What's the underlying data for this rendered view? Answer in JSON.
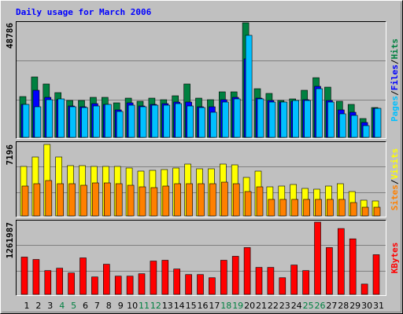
{
  "title": "Daily usage for March 2006",
  "legend_separator": "/",
  "chart_data": [
    {
      "type": "bar",
      "ylim": [
        0,
        48786
      ],
      "yticks": [
        48786
      ],
      "series": [
        {
          "name": "Hits",
          "color": "#008040",
          "values": [
            17378,
            25733,
            22726,
            19049,
            15707,
            15707,
            17044,
            17044,
            14705,
            16710,
            15373,
            16710,
            16042,
            17713,
            22726,
            16710,
            16042,
            19384,
            19384,
            48786,
            20720,
            18715,
            15707,
            16376,
            20052,
            25399,
            21389,
            15373,
            14036,
            8021,
            12700
          ]
        },
        {
          "name": "Files",
          "color": "#0000ff",
          "values": [
            14036,
            20052,
            17044,
            16042,
            13368,
            13034,
            14371,
            14036,
            11697,
            14705,
            13368,
            14036,
            14371,
            15039,
            15039,
            13034,
            13034,
            16042,
            17044,
            33420,
            16710,
            15707,
            15039,
            15373,
            16042,
            21723,
            15707,
            11697,
            10694,
            6350,
            12365
          ]
        },
        {
          "name": "Pages",
          "color": "#00c0ff",
          "values": [
            14036,
            13034,
            16042,
            16376,
            13034,
            12700,
            13368,
            14036,
            11029,
            13702,
            13034,
            13702,
            13702,
            14371,
            13368,
            12700,
            10694,
            15039,
            16376,
            43446,
            16376,
            15039,
            15039,
            15707,
            15707,
            20720,
            15039,
            10026,
            9358,
            5013,
            12365
          ]
        }
      ]
    },
    {
      "type": "bar",
      "ylim": [
        0,
        7196
      ],
      "yticks": [
        7196
      ],
      "series": [
        {
          "name": "Visits",
          "color": "#ffff00",
          "values": [
            4982,
            5931,
            7196,
            5931,
            5061,
            5061,
            4982,
            4982,
            4982,
            4824,
            4508,
            4587,
            4666,
            4824,
            5219,
            4745,
            4745,
            5219,
            5140,
            3875,
            4508,
            2926,
            3005,
            3163,
            2768,
            2689,
            3005,
            3242,
            2451,
            1582,
            1503
          ]
        },
        {
          "name": "Sites",
          "color": "#ff8000",
          "values": [
            3005,
            3242,
            3559,
            3242,
            3242,
            3084,
            3321,
            3321,
            3242,
            3084,
            2926,
            2847,
            3005,
            3242,
            3242,
            3242,
            3242,
            3400,
            3242,
            2451,
            2926,
            1661,
            1661,
            1661,
            1661,
            1661,
            1661,
            1661,
            1344,
            870,
            870
          ]
        }
      ]
    },
    {
      "type": "bar",
      "ylim": [
        0,
        1261987
      ],
      "yticks": [
        1261987
      ],
      "categories": [
        "1",
        "2",
        "3",
        "4",
        "5",
        "6",
        "7",
        "8",
        "9",
        "10",
        "11",
        "12",
        "13",
        "14",
        "15",
        "16",
        "17",
        "18",
        "19",
        "20",
        "21",
        "22",
        "23",
        "24",
        "25",
        "26",
        "27",
        "28",
        "29",
        "30",
        "31"
      ],
      "category_colors": [
        "#000000",
        "#000000",
        "#000000",
        "#008040",
        "#008040",
        "#000000",
        "#000000",
        "#000000",
        "#000000",
        "#000000",
        "#008040",
        "#008040",
        "#000000",
        "#000000",
        "#000000",
        "#000000",
        "#000000",
        "#008040",
        "#008040",
        "#000000",
        "#000000",
        "#000000",
        "#000000",
        "#000000",
        "#008040",
        "#008040",
        "#000000",
        "#000000",
        "#000000",
        "#000000",
        "#000000"
      ],
      "series": [
        {
          "name": "KBytes",
          "color": "#ff0000",
          "values": [
            651796,
            610192,
            416040,
            457644,
            374436,
            637928,
            305096,
            526984,
            318964,
            318964,
            360568,
            582456,
            596324,
            443776,
            346700,
            346700,
            291228,
            596324,
            665664,
            818212,
            471512,
            471512,
            291228,
            513116,
            416040,
            1261987,
            818212,
            1151044,
            970760,
            180284,
            693400
          ]
        }
      ]
    }
  ]
}
